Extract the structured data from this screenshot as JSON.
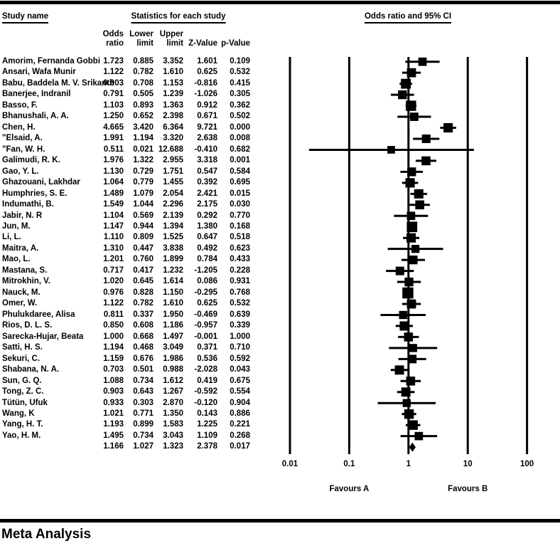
{
  "header": {
    "study_col": "Study name",
    "stats_col": "Statistics for each study",
    "plot_col": "Odds ratio and 95% CI",
    "cols": {
      "odds_ratio": [
        "Odds",
        "ratio"
      ],
      "lower": [
        "Lower",
        "limit"
      ],
      "upper": [
        "Upper",
        "limit"
      ],
      "z": "Z-Value",
      "p": "p-Value"
    }
  },
  "chart_data": {
    "type": "forest",
    "x_axis": {
      "scale": "log10",
      "min": 0.01,
      "max": 100,
      "ticks": [
        "0.01",
        "0.1",
        "1",
        "10",
        "100"
      ]
    },
    "footer_labels": {
      "left": "Favours A",
      "right": "Favours B"
    },
    "marker_color": "#000000",
    "studies": [
      {
        "name": "Amorim, Fernanda Gobbi",
        "or": "1.723",
        "lower": "0.885",
        "upper": "3.352",
        "z": "1.601",
        "p": "0.109"
      },
      {
        "name": "Ansari, Wafa Munir",
        "or": "1.122",
        "lower": "0.782",
        "upper": "1.610",
        "z": "0.625",
        "p": "0.532"
      },
      {
        "name": "Babu, Baddela M. V. Srikanth",
        "or": "0.903",
        "lower": "0.708",
        "upper": "1.153",
        "z": "-0.816",
        "p": "0.415"
      },
      {
        "name": "Banerjee, Indranil",
        "or": "0.791",
        "lower": "0.505",
        "upper": "1.239",
        "z": "-1.026",
        "p": "0.305"
      },
      {
        "name": "Basso, F.",
        "or": "1.103",
        "lower": "0.893",
        "upper": "1.363",
        "z": "0.912",
        "p": "0.362"
      },
      {
        "name": "Bhanushali, A. A.",
        "or": "1.250",
        "lower": "0.652",
        "upper": "2.398",
        "z": "0.671",
        "p": "0.502"
      },
      {
        "name": "Chen, H.",
        "or": "4.665",
        "lower": "3.420",
        "upper": "6.364",
        "z": "9.721",
        "p": "0.000"
      },
      {
        "name": "\"Elsaid, A.",
        "or": "1.991",
        "lower": "1.194",
        "upper": "3.320",
        "z": "2.638",
        "p": "0.008"
      },
      {
        "name": "\"Fan, W. H.",
        "or": "0.511",
        "lower": "0.021",
        "upper": "12.688",
        "z": "-0.410",
        "p": "0.682"
      },
      {
        "name": "Galimudi, R. K.",
        "or": "1.976",
        "lower": "1.322",
        "upper": "2.955",
        "z": "3.318",
        "p": "0.001"
      },
      {
        "name": "Gao, Y. L.",
        "or": "1.130",
        "lower": "0.729",
        "upper": "1.751",
        "z": "0.547",
        "p": "0.584"
      },
      {
        "name": "Ghazouani, Lakhdar",
        "or": "1.064",
        "lower": "0.779",
        "upper": "1.455",
        "z": "0.392",
        "p": "0.695"
      },
      {
        "name": "Humphries, S. E.",
        "or": "1.489",
        "lower": "1.079",
        "upper": "2.054",
        "z": "2.421",
        "p": "0.015"
      },
      {
        "name": "Indumathi, B.",
        "or": "1.549",
        "lower": "1.044",
        "upper": "2.296",
        "z": "2.175",
        "p": "0.030"
      },
      {
        "name": "Jabir, N. R",
        "or": "1.104",
        "lower": "0.569",
        "upper": "2.139",
        "z": "0.292",
        "p": "0.770"
      },
      {
        "name": "Jun, M.",
        "or": "1.147",
        "lower": "0.944",
        "upper": "1.394",
        "z": "1.380",
        "p": "0.168"
      },
      {
        "name": "Li, L.",
        "or": "1.110",
        "lower": "0.809",
        "upper": "1.525",
        "z": "0.647",
        "p": "0.518"
      },
      {
        "name": "Maitra, A.",
        "or": "1.310",
        "lower": "0.447",
        "upper": "3.838",
        "z": "0.492",
        "p": "0.623"
      },
      {
        "name": "Mao, L.",
        "or": "1.201",
        "lower": "0.760",
        "upper": "1.899",
        "z": "0.784",
        "p": "0.433"
      },
      {
        "name": "Mastana, S.",
        "or": "0.717",
        "lower": "0.417",
        "upper": "1.232",
        "z": "-1.205",
        "p": "0.228"
      },
      {
        "name": "Mitrokhin, V.",
        "or": "1.020",
        "lower": "0.645",
        "upper": "1.614",
        "z": "0.086",
        "p": "0.931"
      },
      {
        "name": "Nauck, M.",
        "or": "0.976",
        "lower": "0.828",
        "upper": "1.150",
        "z": "-0.295",
        "p": "0.768"
      },
      {
        "name": "Omer, W.",
        "or": "1.122",
        "lower": "0.782",
        "upper": "1.610",
        "z": "0.625",
        "p": "0.532"
      },
      {
        "name": "Phulukdaree, Alisa",
        "or": "0.811",
        "lower": "0.337",
        "upper": "1.950",
        "z": "-0.469",
        "p": "0.639"
      },
      {
        "name": "Rios, D. L. S.",
        "or": "0.850",
        "lower": "0.608",
        "upper": "1.186",
        "z": "-0.957",
        "p": "0.339"
      },
      {
        "name": "Sarecka-Hujar, Beata",
        "or": "1.000",
        "lower": "0.668",
        "upper": "1.497",
        "z": "-0.001",
        "p": "1.000"
      },
      {
        "name": "Satti, H. S.",
        "or": "1.194",
        "lower": "0.468",
        "upper": "3.049",
        "z": "0.371",
        "p": "0.710"
      },
      {
        "name": "Sekuri, C.",
        "or": "1.159",
        "lower": "0.676",
        "upper": "1.986",
        "z": "0.536",
        "p": "0.592"
      },
      {
        "name": "Shabana, N. A.",
        "or": "0.703",
        "lower": "0.501",
        "upper": "0.988",
        "z": "-2.028",
        "p": "0.043"
      },
      {
        "name": "Sun, G. Q.",
        "or": "1.088",
        "lower": "0.734",
        "upper": "1.612",
        "z": "0.419",
        "p": "0.675"
      },
      {
        "name": "Tong, Z. C.",
        "or": "0.903",
        "lower": "0.643",
        "upper": "1.267",
        "z": "-0.592",
        "p": "0.554"
      },
      {
        "name": "Tütün, Ufuk",
        "or": "0.933",
        "lower": "0.303",
        "upper": "2.870",
        "z": "-0.120",
        "p": "0.904"
      },
      {
        "name": "Wang, K",
        "or": "1.021",
        "lower": "0.771",
        "upper": "1.350",
        "z": "0.143",
        "p": "0.886"
      },
      {
        "name": "Yang, H. T.",
        "or": "1.193",
        "lower": "0.899",
        "upper": "1.583",
        "z": "1.225",
        "p": "0.221"
      },
      {
        "name": "Yao, H. M.",
        "or": "1.495",
        "lower": "0.734",
        "upper": "3.043",
        "z": "1.109",
        "p": "0.268"
      }
    ],
    "summary": {
      "name": "",
      "or": "1.166",
      "lower": "1.027",
      "upper": "1.323",
      "z": "2.378",
      "p": "0.017"
    }
  },
  "footer": {
    "title": "Meta Analysis"
  }
}
